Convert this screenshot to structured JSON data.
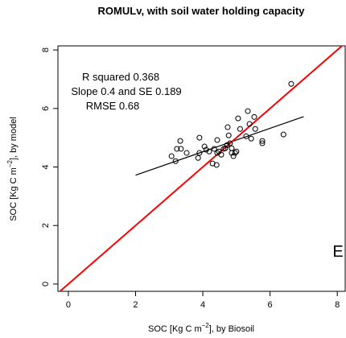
{
  "chart_data": {
    "type": "scatter",
    "title": "ROMULv, with soil water holding capacity",
    "xlabel": {
      "text": "SOC [Kg C m",
      "sup": "−2",
      "rest": "], by Biosoil"
    },
    "ylabel": {
      "text": "SOC [Kg C m",
      "sup": "−2",
      "rest": "], by model"
    },
    "xlim": [
      -0.31,
      8.26
    ],
    "ylim": [
      -0.25,
      8.14
    ],
    "xticks": [
      0,
      2,
      4,
      6,
      8
    ],
    "yticks": [
      0,
      2,
      4,
      6,
      8
    ],
    "annotations": [
      "R squared  0.368",
      "Slope  0.4  and SE  0.189",
      "RMSE 0.68",
      "E"
    ],
    "x": [
      3.07,
      3.19,
      3.23,
      3.33,
      3.35,
      3.52,
      3.9,
      3.9,
      3.86,
      4.05,
      4.1,
      4.19,
      4.29,
      4.41,
      4.34,
      4.43,
      4.43,
      4.48,
      4.55,
      4.62,
      4.67,
      4.72,
      4.77,
      4.81,
      4.86,
      4.86,
      4.91,
      4.96,
      5.0,
      4.74,
      5.11,
      5.05,
      5.29,
      5.44,
      5.39,
      5.34,
      5.53,
      5.56,
      5.77,
      5.77,
      6.4,
      6.63
    ],
    "values": [
      4.37,
      4.2,
      4.62,
      4.89,
      4.62,
      4.48,
      5.0,
      4.48,
      4.31,
      4.7,
      4.59,
      4.53,
      4.12,
      4.07,
      4.62,
      4.92,
      4.48,
      4.53,
      4.42,
      4.62,
      4.64,
      4.75,
      5.08,
      4.81,
      4.64,
      4.48,
      4.37,
      4.48,
      4.53,
      5.36,
      5.3,
      5.66,
      5.05,
      4.97,
      5.47,
      5.91,
      5.71,
      5.3,
      4.89,
      4.81,
      5.11,
      6.84
    ],
    "color": "#000000",
    "lines": [
      {
        "color": "#000000",
        "x": [
          2,
          7
        ],
        "y": [
          3.72,
          5.72
        ]
      },
      {
        "color": "#ff0000",
        "x": [
          -0.31,
          8.26
        ],
        "y": [
          -0.31,
          8.26
        ]
      }
    ]
  }
}
